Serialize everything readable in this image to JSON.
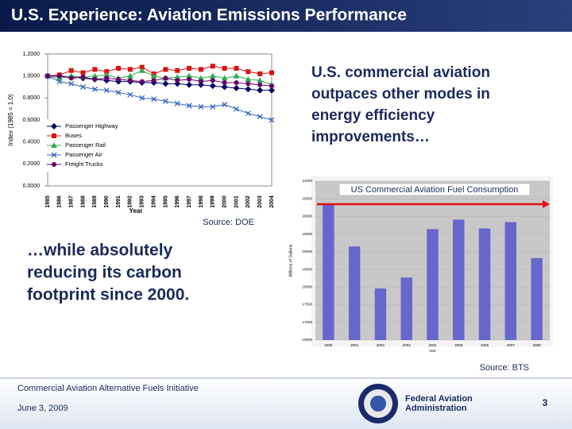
{
  "slide": {
    "title": "U.S. Experience: Aviation Emissions Performance",
    "callout_top": [
      "U.S. commercial aviation",
      "outpaces other modes in",
      "energy efficiency",
      "improvements…"
    ],
    "callout_bottom": [
      "…while absolutely",
      "reducing its carbon",
      "footprint since 2000."
    ],
    "source_left": "Source: DOE",
    "source_right": "Source: BTS",
    "footer": {
      "initiative": "Commercial Aviation Alternative Fuels Initiative",
      "date": "June 3, 2009",
      "agency": [
        "Federal Aviation",
        "Administration"
      ],
      "page": "3"
    }
  },
  "chart_data": [
    {
      "type": "line",
      "x_label": "Year",
      "y_label": "Index (1985 = 1.0)",
      "categories": [
        "1985",
        "1986",
        "1987",
        "1988",
        "1989",
        "1990",
        "1991",
        "1992",
        "1993",
        "1994",
        "1995",
        "1996",
        "1997",
        "1998",
        "1999",
        "2000",
        "2001",
        "2002",
        "2003",
        "2004"
      ],
      "ylim": [
        0,
        1.2
      ],
      "yticks": [
        {
          "value": 0,
          "label": "0.0000"
        },
        {
          "value": 0.2,
          "label": "0.2000"
        },
        {
          "value": 0.4,
          "label": "0.4000"
        },
        {
          "value": 0.6,
          "label": "0.6000"
        },
        {
          "value": 0.8,
          "label": "0.8000"
        },
        {
          "value": 1.0,
          "label": "1.0000"
        },
        {
          "value": 1.2,
          "label": "1.2000"
        }
      ],
      "legend": "lower left",
      "series": [
        {
          "name": "Passenger Highway",
          "color": "#000066",
          "marker": "diamond",
          "values": [
            1.0,
            1.0,
            0.99,
            0.98,
            0.97,
            0.96,
            0.95,
            0.95,
            0.94,
            0.94,
            0.93,
            0.93,
            0.92,
            0.92,
            0.91,
            0.9,
            0.89,
            0.88,
            0.87,
            0.87
          ]
        },
        {
          "name": "Buses",
          "color": "#dd1111",
          "marker": "square",
          "values": [
            1.0,
            1.01,
            1.05,
            1.03,
            1.06,
            1.04,
            1.07,
            1.06,
            1.08,
            1.02,
            1.06,
            1.05,
            1.07,
            1.06,
            1.09,
            1.07,
            1.07,
            1.04,
            1.02,
            1.03
          ]
        },
        {
          "name": "Passenger Rail",
          "color": "#33aa55",
          "marker": "triangle",
          "values": [
            1.0,
            0.98,
            1.0,
            0.99,
            1.0,
            1.01,
            0.98,
            1.0,
            1.05,
            1.0,
            0.98,
            0.99,
            1.0,
            0.98,
            1.0,
            0.98,
            1.0,
            0.97,
            0.96,
            0.92
          ]
        },
        {
          "name": "Passenger Air",
          "color": "#3366bb",
          "marker": "x",
          "values": [
            1.0,
            0.95,
            0.93,
            0.9,
            0.88,
            0.87,
            0.85,
            0.83,
            0.8,
            0.79,
            0.77,
            0.75,
            0.73,
            0.72,
            0.72,
            0.74,
            0.7,
            0.66,
            0.63,
            0.6
          ]
        },
        {
          "name": "Freight Trucks",
          "color": "#660066",
          "marker": "circle",
          "values": [
            1.0,
            1.0,
            0.98,
            0.99,
            0.97,
            0.98,
            0.97,
            0.96,
            0.95,
            0.96,
            0.98,
            0.96,
            0.97,
            0.95,
            0.96,
            0.94,
            0.94,
            0.93,
            0.92,
            0.91
          ]
        }
      ]
    },
    {
      "type": "bar",
      "title": "US Commercial Aviation Fuel Consumption",
      "x_label": "Year",
      "y_label": "Millions of Gallons",
      "categories": [
        "2000",
        "2001",
        "2002",
        "2003",
        "2004",
        "2005",
        "2006",
        "2007",
        "2008"
      ],
      "values": [
        20330,
        19150,
        17960,
        18270,
        19640,
        19910,
        19660,
        19840,
        18820
      ],
      "color": "#6666cc",
      "ylim": [
        16500,
        21000
      ],
      "yticks": [
        16500,
        17000,
        17500,
        18000,
        18500,
        19000,
        19500,
        20000,
        20500,
        21000
      ],
      "grid": true
    }
  ]
}
